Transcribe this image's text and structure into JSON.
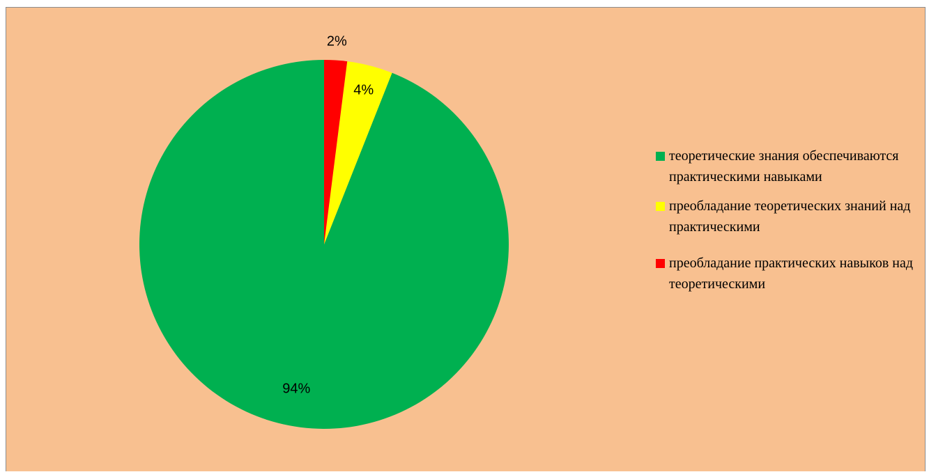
{
  "chart_data": {
    "type": "pie",
    "title": "",
    "slices": [
      {
        "label": "теоретические знания обеспечиваются практическими навыками",
        "value": 94,
        "display": "94%",
        "color": "#00b050"
      },
      {
        "label": "преобладание теоретических знаний над практическими",
        "value": 4,
        "display": "4%",
        "color": "#ffff00"
      },
      {
        "label": "преобладание практических навыков над теоретическими",
        "value": 2,
        "display": "2%",
        "color": "#ff0000"
      }
    ],
    "legend_position": "right",
    "background_color": "#f8c090"
  },
  "legend": {
    "items": [
      {
        "label": "теоретические знания обеспечиваются практическими навыками"
      },
      {
        "label": "преобладание теоретических знаний над практическими"
      },
      {
        "label": "преобладание практических навыков над теоретическими"
      }
    ]
  }
}
